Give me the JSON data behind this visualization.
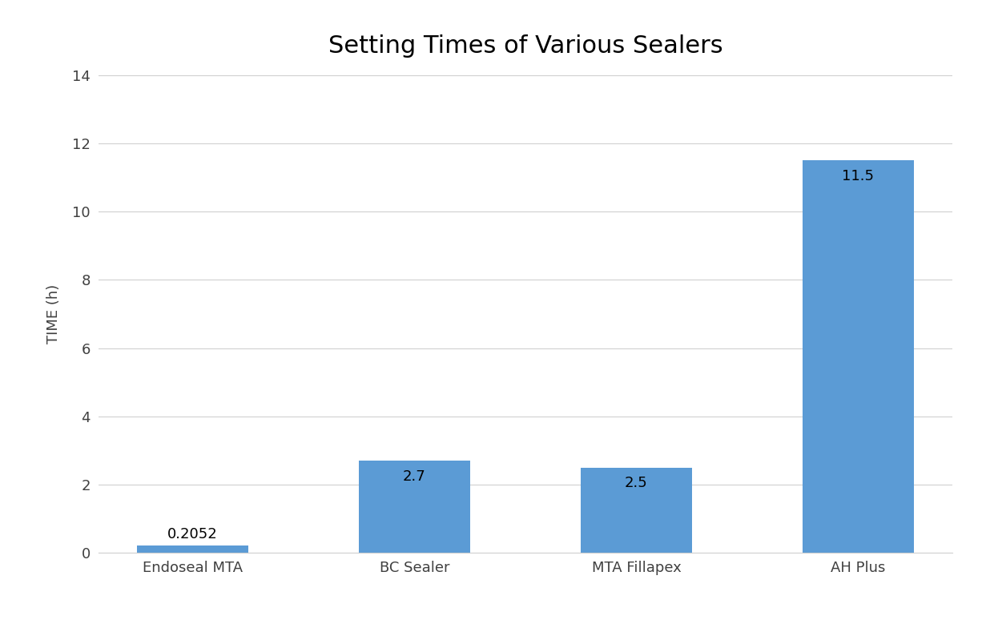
{
  "title": "Setting Times of Various Sealers",
  "categories": [
    "Endoseal MTA",
    "BC Sealer",
    "MTA Fillapex",
    "AH Plus"
  ],
  "values": [
    0.2052,
    2.7,
    2.5,
    11.5
  ],
  "bar_color": "#5B9BD5",
  "ylabel": "TIME (h)",
  "ylim": [
    0,
    14
  ],
  "yticks": [
    0,
    2,
    4,
    6,
    8,
    10,
    12,
    14
  ],
  "title_fontsize": 22,
  "label_fontsize": 13,
  "tick_fontsize": 13,
  "bar_width": 0.5,
  "value_labels": [
    "0.2052",
    "2.7",
    "2.5",
    "11.5"
  ],
  "background_color": "#ffffff",
  "plot_bg_color": "#ffffff",
  "grid_color": "#d0d0d0",
  "value_label_fontsize": 13
}
